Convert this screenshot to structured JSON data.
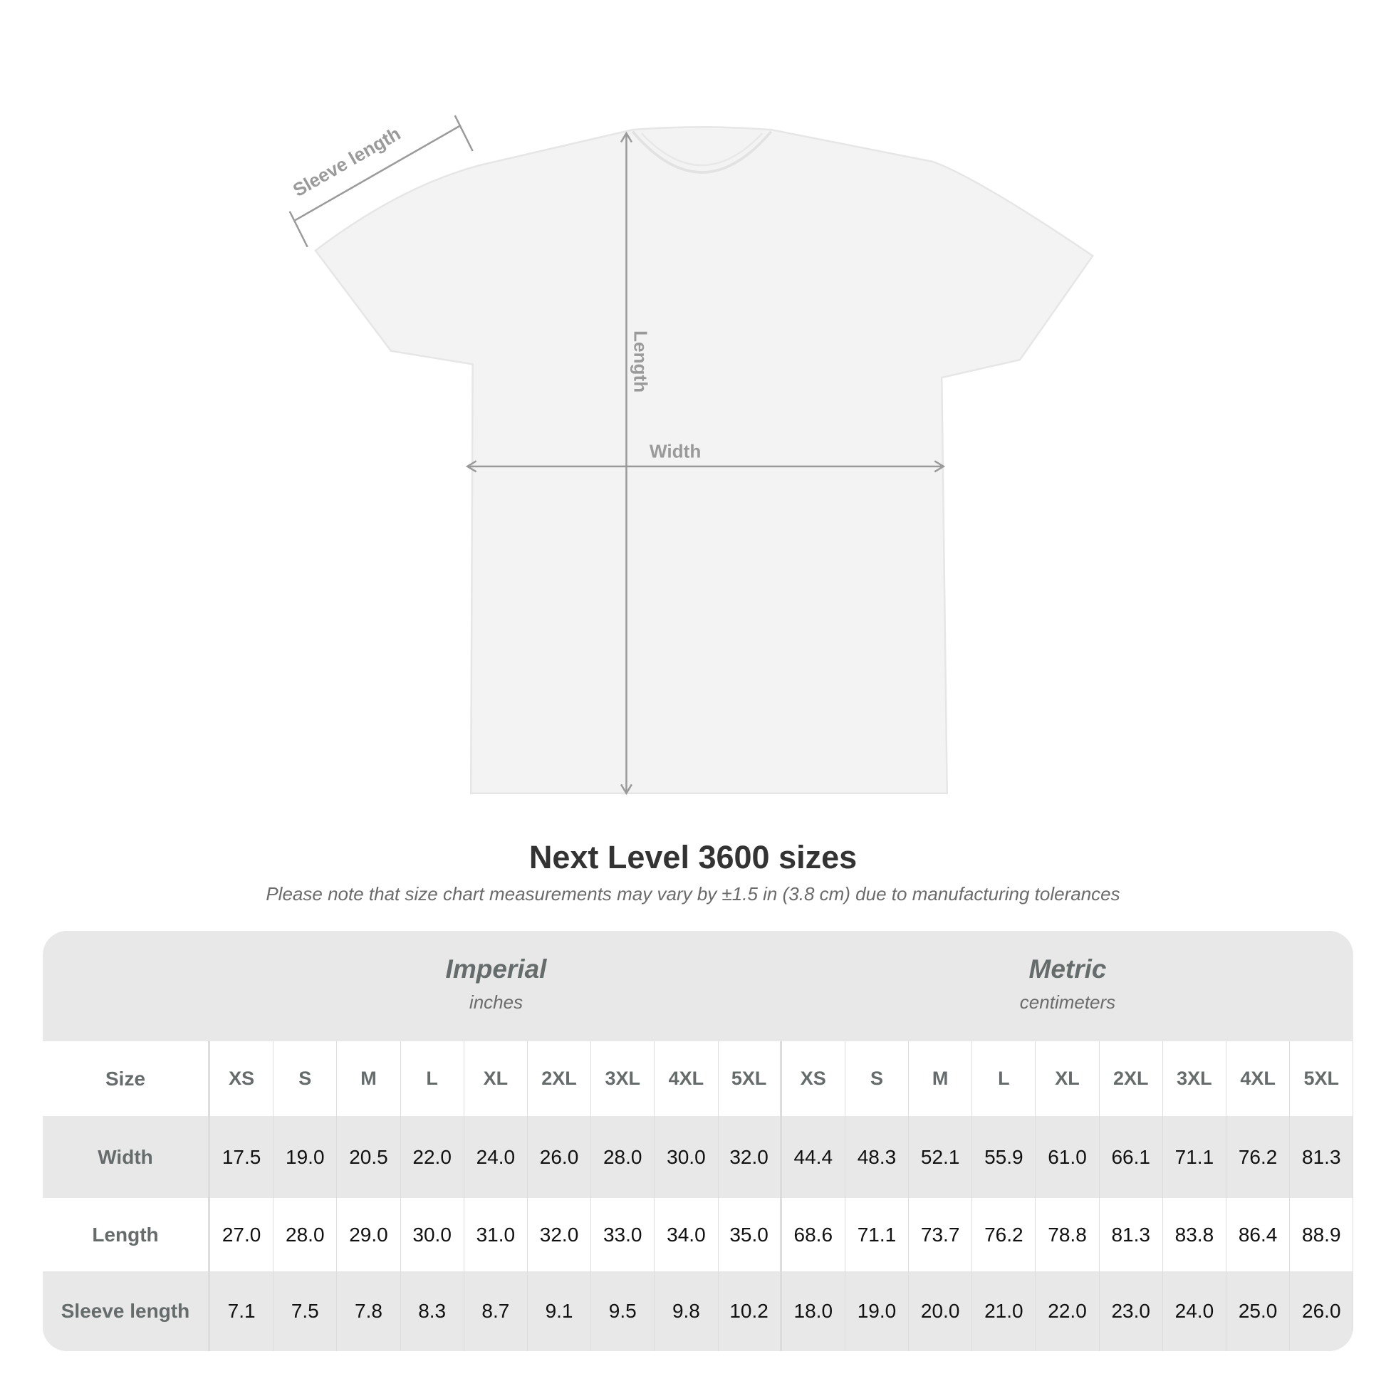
{
  "diagram": {
    "labels": {
      "sleeve": "Sleeve length",
      "length": "Length",
      "width": "Width"
    },
    "colors": {
      "shirt": "#f3f3f3",
      "measure": "#9a9a9a"
    }
  },
  "title": "Next Level 3600 sizes",
  "note": "Please note that size chart measurements may vary by ±1.5 in (3.8 cm) due to manufacturing tolerances",
  "table": {
    "imperial": {
      "title": "Imperial",
      "unit": "inches"
    },
    "metric": {
      "title": "Metric",
      "unit": "centimeters"
    },
    "size_label": "Size",
    "sizes": [
      "XS",
      "S",
      "M",
      "L",
      "XL",
      "2XL",
      "3XL",
      "4XL",
      "5XL"
    ],
    "rows": [
      {
        "label": "Width",
        "imperial": [
          "17.5",
          "19.0",
          "20.5",
          "22.0",
          "24.0",
          "26.0",
          "28.0",
          "30.0",
          "32.0"
        ],
        "metric": [
          "44.4",
          "48.3",
          "52.1",
          "55.9",
          "61.0",
          "66.1",
          "71.1",
          "76.2",
          "81.3"
        ]
      },
      {
        "label": "Length",
        "imperial": [
          "27.0",
          "28.0",
          "29.0",
          "30.0",
          "31.0",
          "32.0",
          "33.0",
          "34.0",
          "35.0"
        ],
        "metric": [
          "68.6",
          "71.1",
          "73.7",
          "76.2",
          "78.8",
          "81.3",
          "83.8",
          "86.4",
          "88.9"
        ]
      },
      {
        "label": "Sleeve length",
        "imperial": [
          "7.1",
          "7.5",
          "7.8",
          "8.3",
          "8.7",
          "9.1",
          "9.5",
          "9.8",
          "10.2"
        ],
        "metric": [
          "18.0",
          "19.0",
          "20.0",
          "21.0",
          "22.0",
          "23.0",
          "24.0",
          "25.0",
          "26.0"
        ]
      }
    ]
  }
}
